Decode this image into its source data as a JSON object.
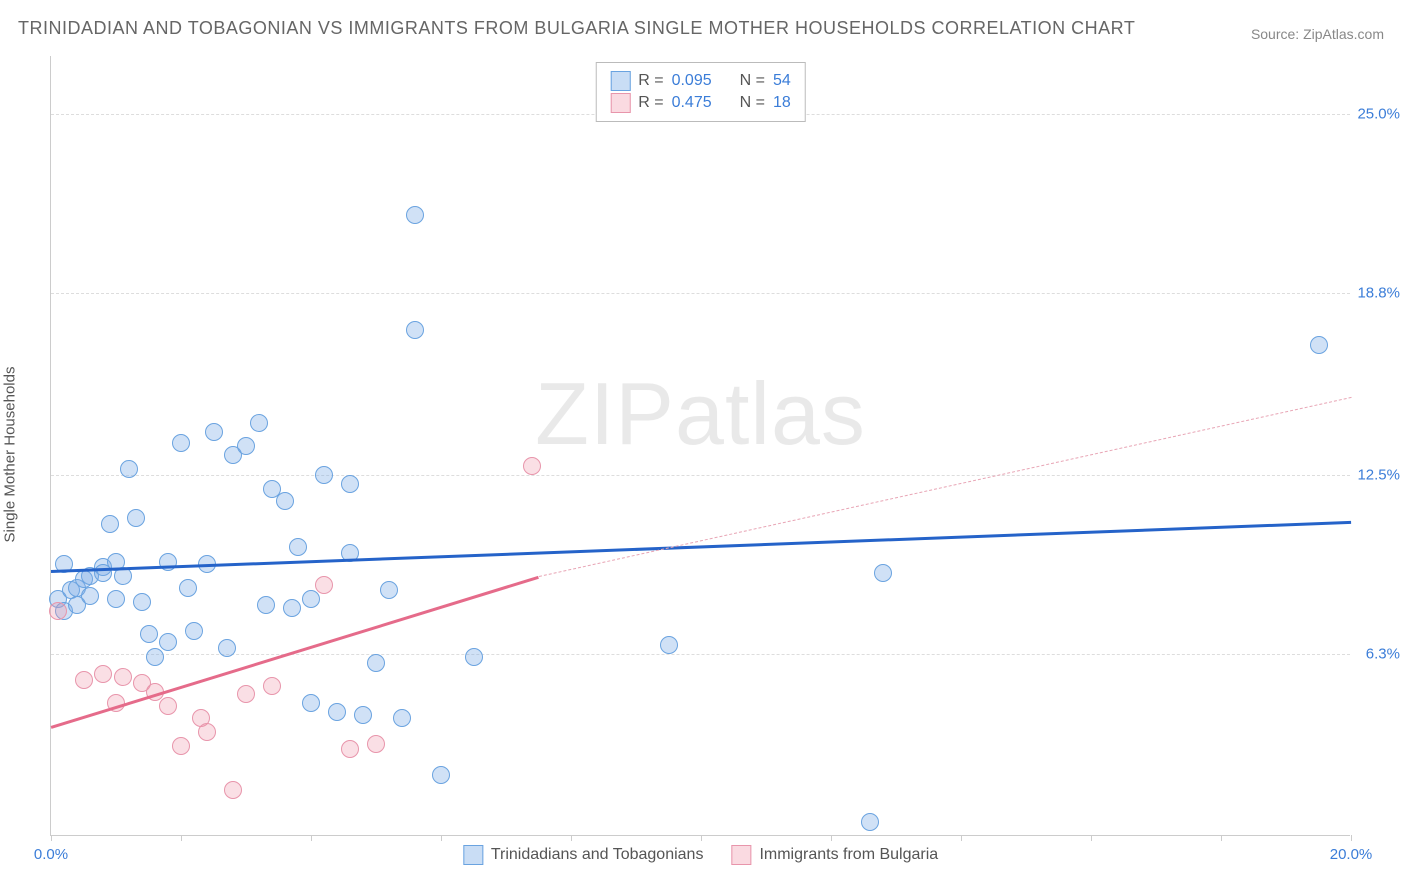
{
  "title": "TRINIDADIAN AND TOBAGONIAN VS IMMIGRANTS FROM BULGARIA SINGLE MOTHER HOUSEHOLDS CORRELATION CHART",
  "source": "Source: ZipAtlas.com",
  "y_axis_label": "Single Mother Households",
  "watermark_a": "ZIP",
  "watermark_b": "atlas",
  "chart": {
    "type": "scatter",
    "background_color": "#ffffff",
    "grid_color": "#dddddd",
    "axis_color": "#cccccc",
    "xlim": [
      0,
      20
    ],
    "ylim": [
      0,
      27
    ],
    "y_ticks": [
      6.3,
      12.5,
      18.8,
      25.0
    ],
    "y_tick_labels": [
      "6.3%",
      "12.5%",
      "18.8%",
      "25.0%"
    ],
    "x_ticks": [
      0,
      2,
      4,
      6,
      8,
      10,
      12,
      14,
      16,
      18,
      20
    ],
    "x_tick_labels_shown": {
      "0": "0.0%",
      "20": "20.0%"
    },
    "series": [
      {
        "key": "blue",
        "label": "Trinidadians and Tobagonians",
        "marker_color": "#6aa3e0",
        "marker_fill": "rgba(120,170,230,0.35)",
        "marker_radius": 9,
        "R": "0.095",
        "N": "54",
        "trend": {
          "x1": 0,
          "y1": 9.2,
          "x2": 20,
          "y2": 10.9,
          "color": "#2563c9",
          "dash_extent": null
        },
        "points": [
          [
            0.1,
            8.2
          ],
          [
            0.2,
            9.4
          ],
          [
            0.2,
            7.8
          ],
          [
            0.3,
            8.5
          ],
          [
            0.4,
            8.6
          ],
          [
            0.4,
            8.0
          ],
          [
            0.5,
            8.9
          ],
          [
            0.6,
            9.0
          ],
          [
            0.6,
            8.3
          ],
          [
            0.8,
            9.3
          ],
          [
            0.8,
            9.1
          ],
          [
            0.9,
            10.8
          ],
          [
            1.0,
            9.5
          ],
          [
            1.0,
            8.2
          ],
          [
            1.1,
            9.0
          ],
          [
            1.2,
            12.7
          ],
          [
            1.3,
            11.0
          ],
          [
            1.4,
            8.1
          ],
          [
            1.5,
            7.0
          ],
          [
            1.6,
            6.2
          ],
          [
            1.8,
            9.5
          ],
          [
            1.8,
            6.7
          ],
          [
            2.0,
            13.6
          ],
          [
            2.1,
            8.6
          ],
          [
            2.2,
            7.1
          ],
          [
            2.4,
            9.4
          ],
          [
            2.5,
            14.0
          ],
          [
            2.7,
            6.5
          ],
          [
            2.8,
            13.2
          ],
          [
            3.0,
            13.5
          ],
          [
            3.2,
            14.3
          ],
          [
            3.3,
            8.0
          ],
          [
            3.4,
            12.0
          ],
          [
            3.6,
            11.6
          ],
          [
            3.7,
            7.9
          ],
          [
            3.8,
            10.0
          ],
          [
            4.0,
            4.6
          ],
          [
            4.0,
            8.2
          ],
          [
            4.2,
            12.5
          ],
          [
            4.4,
            4.3
          ],
          [
            4.6,
            9.8
          ],
          [
            4.6,
            12.2
          ],
          [
            4.8,
            4.2
          ],
          [
            5.0,
            6.0
          ],
          [
            5.2,
            8.5
          ],
          [
            5.4,
            4.1
          ],
          [
            5.6,
            17.5
          ],
          [
            5.6,
            21.5
          ],
          [
            6.0,
            2.1
          ],
          [
            6.5,
            6.2
          ],
          [
            9.5,
            6.6
          ],
          [
            12.6,
            0.5
          ],
          [
            12.8,
            9.1
          ],
          [
            19.5,
            17.0
          ]
        ]
      },
      {
        "key": "pink",
        "label": "Immigrants from Bulgaria",
        "marker_color": "#e895ab",
        "marker_fill": "rgba(240,150,170,0.30)",
        "marker_radius": 9,
        "R": "0.475",
        "N": "18",
        "trend": {
          "x1": 0,
          "y1": 3.8,
          "x2": 7.5,
          "y2": 9.0,
          "color": "#e56b8a",
          "dash_extent": [
            7.5,
            9.0,
            20,
            15.2
          ]
        },
        "points": [
          [
            0.1,
            7.8
          ],
          [
            0.5,
            5.4
          ],
          [
            0.8,
            5.6
          ],
          [
            1.0,
            4.6
          ],
          [
            1.1,
            5.5
          ],
          [
            1.4,
            5.3
          ],
          [
            1.6,
            5.0
          ],
          [
            1.8,
            4.5
          ],
          [
            2.0,
            3.1
          ],
          [
            2.3,
            4.1
          ],
          [
            2.4,
            3.6
          ],
          [
            2.8,
            1.6
          ],
          [
            3.0,
            4.9
          ],
          [
            3.4,
            5.2
          ],
          [
            4.2,
            8.7
          ],
          [
            4.6,
            3.0
          ],
          [
            5.0,
            3.2
          ],
          [
            7.4,
            12.8
          ]
        ]
      }
    ]
  },
  "legend_top": {
    "R_label": "R =",
    "N_label": "N ="
  },
  "colors": {
    "title_text": "#666666",
    "axis_label_text": "#555555",
    "tick_text": "#3b7dd8",
    "source_text": "#888888"
  }
}
